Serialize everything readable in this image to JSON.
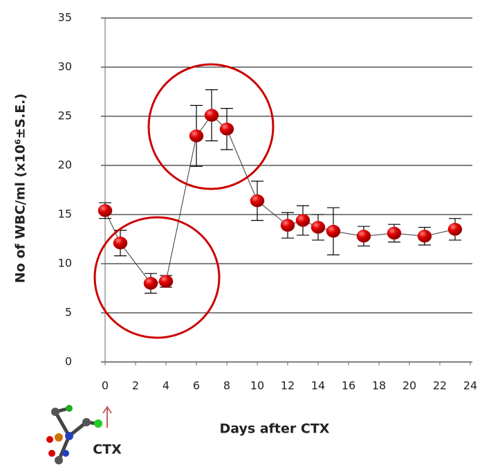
{
  "chart_data": {
    "type": "line",
    "y_label": "No of WBC/ml (x10⁶±S.E.)",
    "x_label": "Days after CTX",
    "annotation": "CTX",
    "x": [
      0,
      1,
      3,
      4,
      6,
      7,
      8,
      10,
      12,
      13,
      14,
      15,
      17,
      19,
      21,
      23
    ],
    "series": [
      {
        "color": "#cc0000",
        "values": [
          15.4,
          12.1,
          8.0,
          8.2,
          23.0,
          25.1,
          23.7,
          16.4,
          13.9,
          14.4,
          13.7,
          13.3,
          12.8,
          13.1,
          12.8,
          13.5
        ],
        "errors": [
          0.8,
          1.3,
          1.0,
          0.6,
          3.1,
          2.6,
          2.1,
          2.0,
          1.3,
          1.5,
          1.3,
          2.4,
          1.0,
          0.9,
          0.9,
          1.1
        ]
      }
    ],
    "xlim": [
      0,
      24
    ],
    "xticks": [
      0,
      2,
      4,
      6,
      8,
      10,
      12,
      14,
      16,
      18,
      20,
      22,
      24
    ],
    "ylim": [
      0,
      35
    ],
    "yticks": [
      0,
      5,
      10,
      15,
      20,
      25,
      30,
      35
    ],
    "grid": true
  }
}
